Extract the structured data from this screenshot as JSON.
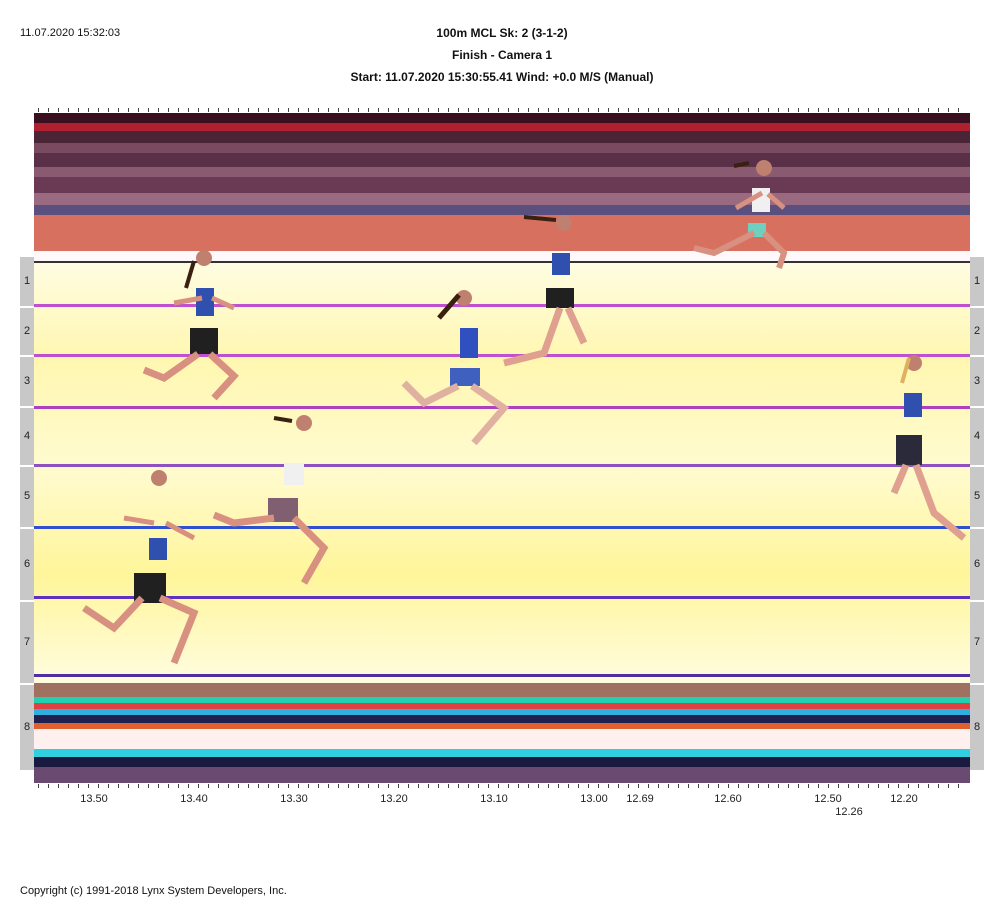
{
  "header": {
    "timestamp": "11.07.2020 15:32:03",
    "event": "100m MCL   Sk: 2 (3-1-2)",
    "camera": "Finish - Camera 1",
    "start_info": "Start: 11.07.2020 15:30:55.41    Wind: +0.0 M/S (Manual)"
  },
  "lanes": [
    "1",
    "2",
    "3",
    "4",
    "5",
    "6",
    "7",
    "8"
  ],
  "time_axis": {
    "labels": [
      "13.50",
      "13.40",
      "13.30",
      "13.20",
      "13.10",
      "13.00",
      "12.69",
      "12.60",
      "12.50",
      "12.20"
    ],
    "secondary_label": "12.26"
  },
  "footer": {
    "copyright": "Copyright (c) 1991-2018 Lynx System Developers, Inc."
  }
}
